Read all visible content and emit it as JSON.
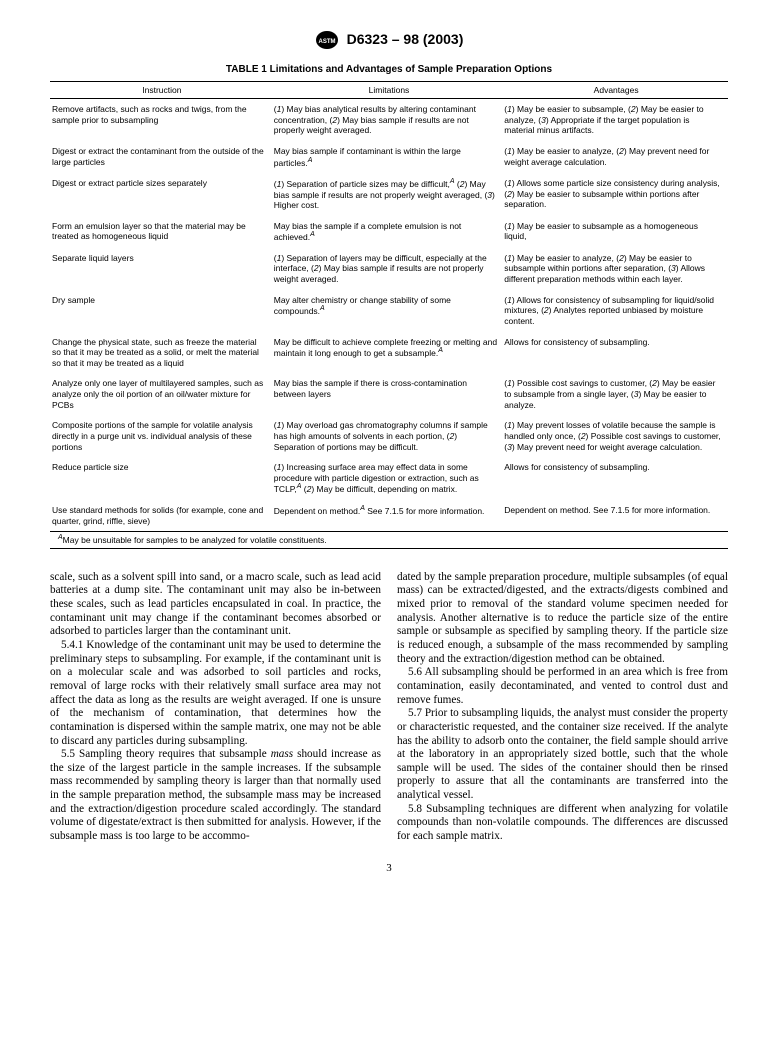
{
  "header": {
    "doc_id": "D6323 – 98 (2003)"
  },
  "table": {
    "title": "TABLE 1  Limitations and Advantages of Sample Preparation Options",
    "columns": [
      "Instruction",
      "Limitations",
      "Advantages"
    ],
    "rows": [
      {
        "instruction": "Remove artifacts, such as rocks and twigs, from the sample prior to subsampling",
        "limitations_html": "(<span class='italic'>1</span>) May bias analytical results by altering contaminant concentration, (<span class='italic'>2</span>) May bias sample if results are not properly weight averaged.",
        "advantages_html": "(<span class='italic'>1</span>) May be easier to subsample, (<span class='italic'>2</span>) May be easier to analyze, (<span class='italic'>3</span>) Appropriate if the target population is material minus artifacts."
      },
      {
        "instruction": "Digest or extract the contaminant from the outside of the large particles",
        "limitations_html": "May bias sample if contaminant is within the large particles.<span class='sup'>A</span>",
        "advantages_html": "(<span class='italic'>1</span>) May be easier to analyze, (<span class='italic'>2</span>) May prevent need for weight average calculation."
      },
      {
        "instruction": "Digest or extract particle sizes separately",
        "limitations_html": "(<span class='italic'>1</span>) Separation of particle sizes may be difficult,<span class='sup'>A</span> (<span class='italic'>2</span>) May bias sample if results are not properly weight averaged, (<span class='italic'>3</span>) Higher cost.",
        "advantages_html": "(<span class='italic'>1</span>) Allows some particle size consistency during analysis, (<span class='italic'>2</span>) May be easier to subsample within portions after separation."
      },
      {
        "instruction": "Form an emulsion layer so that the material may be treated as homogeneous liquid",
        "limitations_html": "May bias the sample if a complete emulsion is not achieved.<span class='sup'>A</span>",
        "advantages_html": "(<span class='italic'>1</span>) May be easier to subsample as a homogeneous liquid,"
      },
      {
        "instruction": "Separate liquid layers",
        "limitations_html": "(<span class='italic'>1</span>) Separation of layers may be difficult, especially at the interface, (<span class='italic'>2</span>) May bias sample if results are not properly weight averaged.",
        "advantages_html": "(<span class='italic'>1</span>) May be easier to analyze, (<span class='italic'>2</span>) May be easier to subsample within portions after separation, (<span class='italic'>3</span>) Allows different preparation methods within each layer."
      },
      {
        "instruction": "Dry sample",
        "limitations_html": "May alter chemistry or change stability of some compounds.<span class='sup'>A</span>",
        "advantages_html": "(<span class='italic'>1</span>) Allows for consistency of subsampling for liquid/solid mixtures, (<span class='italic'>2</span>) Analytes reported unbiased by moisture content."
      },
      {
        "instruction": "Change the physical state, such as freeze the material so that it may be treated as a solid, or melt the material so that it may be treated as a liquid",
        "limitations_html": "May be difficult to achieve complete freezing or melting and maintain it long enough to get a subsample.<span class='sup'>A</span>",
        "advantages_html": "Allows for consistency of subsampling."
      },
      {
        "instruction": "Analyze only one layer of multilayered samples, such as analyze only the oil portion of an oil/water mixture for PCBs",
        "limitations_html": "May bias the sample if there is cross-contamination between layers",
        "advantages_html": "(<span class='italic'>1</span>) Possible cost savings to customer, (<span class='italic'>2</span>) May be easier to subsample from a single layer, (<span class='italic'>3</span>) May be easier to analyze."
      },
      {
        "instruction": "Composite portions of the sample for volatile analysis directly in a purge unit vs. individual analysis of these portions",
        "limitations_html": "(<span class='italic'>1</span>) May overload gas chromatography columns if sample has high amounts of solvents in each portion, (<span class='italic'>2</span>) Separation of portions may be difficult.",
        "advantages_html": "(<span class='italic'>1</span>) May prevent losses of volatile because the sample is handled only once, (<span class='italic'>2</span>) Possible cost savings to customer, (<span class='italic'>3</span>) May prevent need for weight average calculation."
      },
      {
        "instruction": "Reduce particle size",
        "limitations_html": "(<span class='italic'>1</span>) Increasing surface area may effect data in some procedure with particle digestion or extraction, such as TCLP,<span class='sup'>A</span> (<span class='italic'>2</span>) May be difficult, depending on matrix.",
        "advantages_html": "Allows for consistency of subsampling."
      },
      {
        "instruction": "Use standard methods for solids (for example, cone and quarter, grind, riffle, sieve)",
        "limitations_html": "Dependent on method.<span class='sup'>A</span> See 7.1.5 for more information.",
        "advantages_html": "Dependent on method. See 7.1.5 for more information."
      }
    ],
    "footnote_html": "<span class='sup'>A</span>May be unsuitable for samples to be analyzed for volatile constituents."
  },
  "body": {
    "p1": "scale, such as a solvent spill into sand, or a macro scale, such as lead acid batteries at a dump site. The contaminant unit may also be in-between these scales, such as lead particles encapsulated in coal. In practice, the contaminant unit may change if the contaminant becomes absorbed or adsorbed to particles larger than the contaminant unit.",
    "p2": "5.4.1 Knowledge of the contaminant unit may be used to determine the preliminary steps to subsampling. For example, if the contaminant unit is on a molecular scale and was adsorbed to soil particles and rocks, removal of large rocks with their relatively small surface area may not affect the data as long as the results are weight averaged. If one is unsure of the mechanism of contamination, that determines how the contamination is dispersed within the sample matrix, one may not be able to discard any particles during subsampling.",
    "p3_html": "5.5 Sampling theory requires that subsample <span class='italic'>mass</span> should increase as the size of the largest particle in the sample increases. If the subsample mass recommended by sampling theory is larger than that normally used in the sample preparation method, the subsample mass may be increased and the extraction/digestion procedure scaled accordingly. The standard volume of digestate/extract is then submitted for analysis. However, if the subsample mass is too large to be accommo-",
    "p4": "dated by the sample preparation procedure, multiple subsamples (of equal mass) can be extracted/digested, and the extracts/digests combined and mixed prior to removal of the standard volume specimen needed for analysis. Another alternative is to reduce the particle size of the entire sample or subsample as specified by sampling theory. If the particle size is reduced enough, a subsample of the mass recommended by sampling theory and the extraction/digestion method can be obtained.",
    "p5": "5.6 All subsampling should be performed in an area which is free from contamination, easily decontaminated, and vented to control dust and remove fumes.",
    "p6": "5.7 Prior to subsampling liquids, the analyst must consider the property or characteristic requested, and the container size received. If the analyte has the ability to adsorb onto the container, the field sample should arrive at the laboratory in an appropriately sized bottle, such that the whole sample will be used. The sides of the container should then be rinsed properly to assure that all the contaminants are transferred into the analytical vessel.",
    "p7": "5.8 Subsampling techniques are different when analyzing for volatile compounds than non-volatile compounds. The differences are discussed for each sample matrix."
  },
  "page_number": "3"
}
